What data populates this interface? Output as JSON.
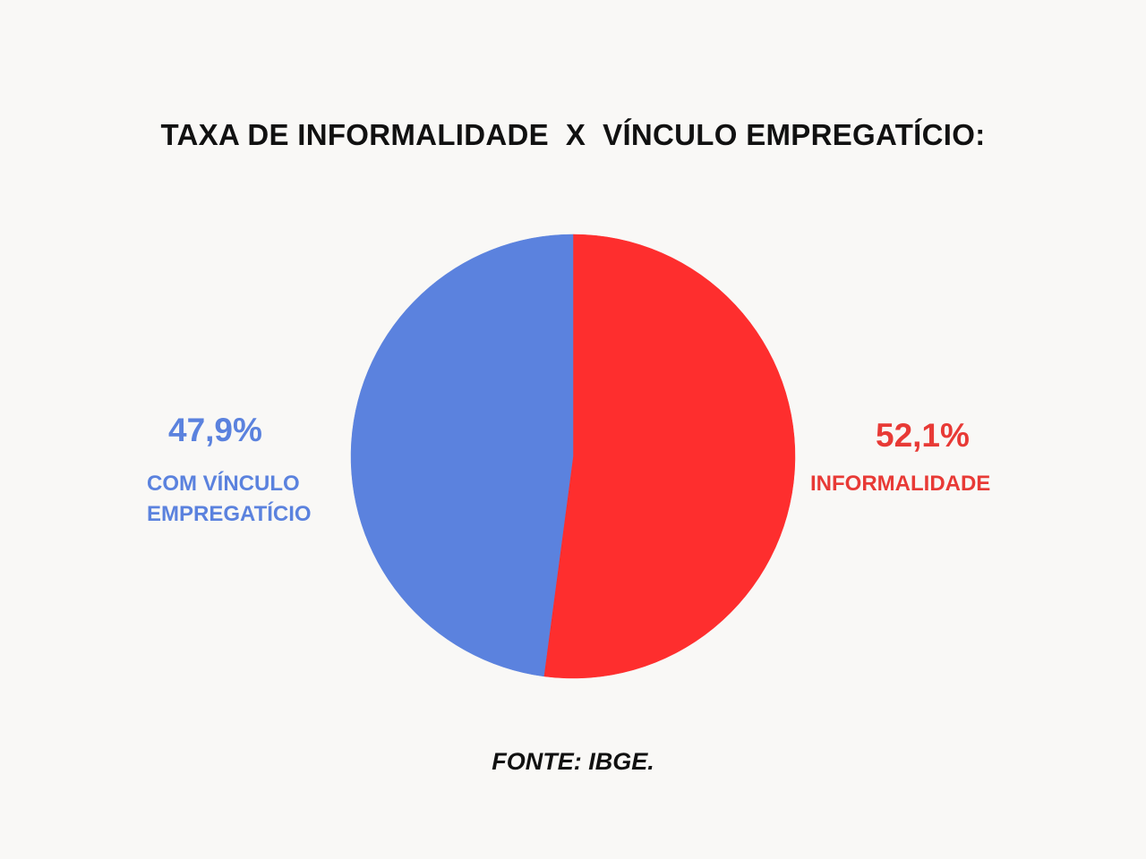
{
  "chart_data": {
    "type": "pie",
    "title": "TAXA DE INFORMALIDADE  X  VÍNCULO EMPREGATÍCIO:",
    "slices": [
      {
        "label": "INFORMALIDADE",
        "value": 52.1,
        "value_label": "52,1%",
        "color": "#fe2e2e"
      },
      {
        "label": "COM VÍNCULO EMPREGATÍCIO",
        "value": 47.9,
        "value_label": "47,9%",
        "color": "#5b82de"
      }
    ],
    "start_angle": "12 o'clock",
    "direction": "clockwise",
    "legend": "none",
    "note": "FONTE: IBGE."
  },
  "label_colors": {
    "informalidade": "#e83a36",
    "vinculo": "#5b82de"
  }
}
